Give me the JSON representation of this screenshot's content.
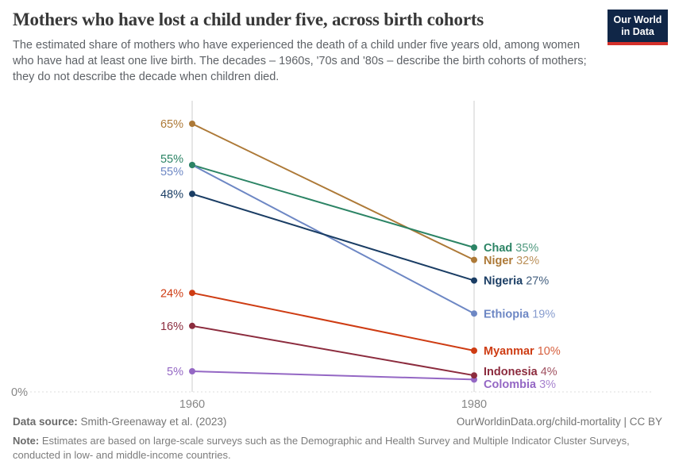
{
  "logo": {
    "line1": "Our World",
    "line2": "in Data"
  },
  "colors": {
    "axis": "#cccccc",
    "zero_line": "#dcdcdc",
    "tick_text": "#868686",
    "logo_bg": "#102647",
    "logo_accent": "#D5302A"
  },
  "chart_data": {
    "type": "line",
    "variant": "slope-chart",
    "title": "Mothers who have lost a child under five, across birth cohorts",
    "subtitle": "The estimated share of mothers who have experienced the death of a child under five years old, among women who have had at least one live birth. The decades – 1960s, '70s and '80s – describe the birth cohorts of mothers; they do not describe the decade when children died.",
    "x": [
      1960,
      1980
    ],
    "x_tick_labels": [
      "1960",
      "1980"
    ],
    "zero_label": "0%",
    "ylim": [
      0,
      70
    ],
    "unit": "%",
    "grid": "dashed zero line only",
    "legend_position": "labels at line ends",
    "series": [
      {
        "name": "Niger",
        "values": [
          65,
          32
        ],
        "color": "#AD7937"
      },
      {
        "name": "Chad",
        "values": [
          55,
          35
        ],
        "color": "#2C8465"
      },
      {
        "name": "Ethiopia",
        "values": [
          55,
          19
        ],
        "color": "#6D87C4"
      },
      {
        "name": "Nigeria",
        "values": [
          48,
          27
        ],
        "color": "#1A3D64"
      },
      {
        "name": "Myanmar",
        "values": [
          24,
          10
        ],
        "color": "#CE3C13"
      },
      {
        "name": "Indonesia",
        "values": [
          16,
          4
        ],
        "color": "#8C2C3E"
      },
      {
        "name": "Colombia",
        "values": [
          5,
          3
        ],
        "color": "#9467C4"
      }
    ]
  },
  "footer": {
    "source_label": "Data source:",
    "source_text": " Smith-Greenaway et al. (2023)",
    "rights": "OurWorldinData.org/child-mortality | CC BY",
    "note_label": "Note:",
    "note_text": " Estimates are based on large-scale surveys such as the Demographic and Health Survey and Multiple Indicator Cluster Surveys, conducted in low- and middle-income countries."
  }
}
